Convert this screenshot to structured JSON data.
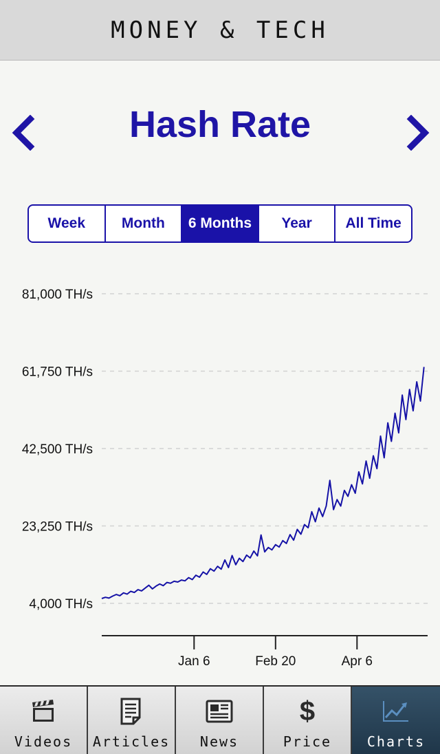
{
  "header": {
    "title": "MONEY & TECH"
  },
  "chart_title": "Hash Rate",
  "nav": {
    "prev_icon": "chevron-left-icon",
    "next_icon": "chevron-right-icon"
  },
  "range_tabs": [
    {
      "label": "Week",
      "active": false
    },
    {
      "label": "Month",
      "active": false
    },
    {
      "label": "6 Months",
      "active": true
    },
    {
      "label": "Year",
      "active": false
    },
    {
      "label": "All Time",
      "active": false
    }
  ],
  "chart_data": {
    "type": "line",
    "y_ticks": [
      "81,000 TH/s",
      "61,750 TH/s",
      "42,500 TH/s",
      "23,250 TH/s",
      "4,000 TH/s"
    ],
    "y_tick_values": [
      81000,
      61750,
      42500,
      23250,
      4000
    ],
    "ylim": [
      4000,
      81000
    ],
    "x_ticks": [
      {
        "label": "Jan 6",
        "day": 51
      },
      {
        "label": "Feb 20",
        "day": 96
      },
      {
        "label": "Apr 6",
        "day": 141
      }
    ],
    "xlim": [
      0,
      180
    ],
    "grid": true,
    "line_color": "#1512a6",
    "series": [
      {
        "points": [
          [
            0,
            5200
          ],
          [
            2,
            5500
          ],
          [
            4,
            5300
          ],
          [
            6,
            5800
          ],
          [
            8,
            6200
          ],
          [
            10,
            5900
          ],
          [
            12,
            6600
          ],
          [
            14,
            6300
          ],
          [
            16,
            7000
          ],
          [
            18,
            6700
          ],
          [
            20,
            7400
          ],
          [
            22,
            7100
          ],
          [
            24,
            7800
          ],
          [
            26,
            8500
          ],
          [
            28,
            7600
          ],
          [
            30,
            8300
          ],
          [
            32,
            8800
          ],
          [
            34,
            8400
          ],
          [
            36,
            9200
          ],
          [
            38,
            9000
          ],
          [
            40,
            9500
          ],
          [
            42,
            9300
          ],
          [
            44,
            9800
          ],
          [
            46,
            9600
          ],
          [
            48,
            10400
          ],
          [
            50,
            9900
          ],
          [
            52,
            11000
          ],
          [
            54,
            10500
          ],
          [
            56,
            11800
          ],
          [
            58,
            11200
          ],
          [
            60,
            12600
          ],
          [
            62,
            12000
          ],
          [
            64,
            13200
          ],
          [
            66,
            12500
          ],
          [
            68,
            14800
          ],
          [
            70,
            12900
          ],
          [
            72,
            15900
          ],
          [
            74,
            13600
          ],
          [
            76,
            15200
          ],
          [
            78,
            14400
          ],
          [
            80,
            16000
          ],
          [
            82,
            15300
          ],
          [
            84,
            17000
          ],
          [
            86,
            15800
          ],
          [
            88,
            21000
          ],
          [
            90,
            16800
          ],
          [
            92,
            17900
          ],
          [
            94,
            17300
          ],
          [
            96,
            18600
          ],
          [
            98,
            18000
          ],
          [
            100,
            19600
          ],
          [
            102,
            18900
          ],
          [
            104,
            21100
          ],
          [
            106,
            19700
          ],
          [
            108,
            22400
          ],
          [
            110,
            21200
          ],
          [
            112,
            23600
          ],
          [
            114,
            22800
          ],
          [
            116,
            26800
          ],
          [
            118,
            24300
          ],
          [
            120,
            27700
          ],
          [
            122,
            25600
          ],
          [
            124,
            28200
          ],
          [
            126,
            34600
          ],
          [
            128,
            27300
          ],
          [
            130,
            29800
          ],
          [
            132,
            28200
          ],
          [
            134,
            32100
          ],
          [
            136,
            30600
          ],
          [
            138,
            33500
          ],
          [
            140,
            31400
          ],
          [
            142,
            36700
          ],
          [
            144,
            33700
          ],
          [
            146,
            39400
          ],
          [
            148,
            35100
          ],
          [
            150,
            40700
          ],
          [
            152,
            37500
          ],
          [
            154,
            45600
          ],
          [
            156,
            40200
          ],
          [
            158,
            48900
          ],
          [
            160,
            44300
          ],
          [
            162,
            51300
          ],
          [
            164,
            46400
          ],
          [
            166,
            55800
          ],
          [
            168,
            49700
          ],
          [
            170,
            57200
          ],
          [
            172,
            51900
          ],
          [
            174,
            59100
          ],
          [
            176,
            54300
          ],
          [
            178,
            62800
          ]
        ]
      }
    ]
  },
  "tabbar": [
    {
      "label": "Videos",
      "icon": "clapperboard-icon",
      "active": false
    },
    {
      "label": "Articles",
      "icon": "document-icon",
      "active": false
    },
    {
      "label": "News",
      "icon": "newspaper-icon",
      "active": false
    },
    {
      "label": "Price",
      "icon": "dollar-icon",
      "glyph": "$",
      "active": false
    },
    {
      "label": "Charts",
      "icon": "line-chart-icon",
      "active": true
    }
  ]
}
